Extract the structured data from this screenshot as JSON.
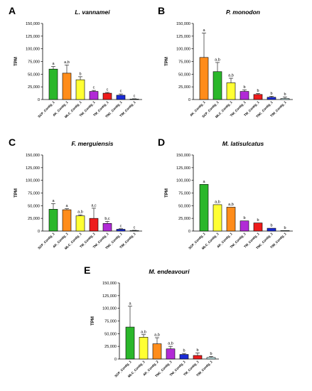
{
  "colors": {
    "green": "#2ab72a",
    "orange": "#ff8c1a",
    "yellow": "#ffff33",
    "purple": "#b12ad6",
    "red": "#ee1c1c",
    "blue": "#1a2bd6",
    "cyan": "#c8f4f4",
    "axis": "#000000"
  },
  "chart_data": [
    {
      "type": "bar",
      "panel": "A",
      "title": "L. vannamei",
      "ylabel": "TPM",
      "ylim": [
        0,
        150000
      ],
      "yticks": [
        0,
        25000,
        50000,
        75000,
        100000,
        125000,
        150000
      ],
      "ytick_labels": [
        "0",
        "25,000",
        "50,000",
        "75,000",
        "100,000",
        "125,000",
        "150,000"
      ],
      "categories": [
        "SCP_Contig_1",
        "AK_Contig_1",
        "MLC_Contig_1",
        "TNI_Contig_1",
        "TM_Contig_1",
        "TNC_Contig_1",
        "TIM_Contig_1"
      ],
      "values": [
        60000,
        52000,
        39000,
        16000,
        12500,
        8500,
        1000
      ],
      "errors": [
        5000,
        16000,
        6000,
        2000,
        1500,
        2500,
        500
      ],
      "letters": [
        "a",
        "a,b",
        "b",
        "c",
        "c",
        "c",
        "c"
      ],
      "colors": [
        "green",
        "orange",
        "yellow",
        "purple",
        "red",
        "blue",
        "cyan"
      ]
    },
    {
      "type": "bar",
      "panel": "B",
      "title": "P. monodon",
      "ylabel": "TPM",
      "ylim": [
        0,
        150000
      ],
      "yticks": [
        0,
        25000,
        50000,
        75000,
        100000,
        125000,
        150000
      ],
      "ytick_labels": [
        "0",
        "25,000",
        "50,000",
        "75,000",
        "100,000",
        "125,000",
        "150,000"
      ],
      "categories": [
        "AK_Contig_1",
        "SCP_Contig_1",
        "MLC_Contig_1",
        "TNI_Contig_1",
        "TM_Contig_1",
        "TNC_Contig_1",
        "TIM_Contig_1"
      ],
      "values": [
        83000,
        55000,
        33000,
        16000,
        10000,
        4500,
        2000
      ],
      "errors": [
        48000,
        18000,
        9000,
        3000,
        2000,
        2000,
        3000
      ],
      "letters": [
        "a",
        "a,b",
        "a,b",
        "b",
        "b",
        "b",
        "b"
      ],
      "colors": [
        "orange",
        "green",
        "yellow",
        "purple",
        "red",
        "blue",
        "cyan"
      ]
    },
    {
      "type": "bar",
      "panel": "C",
      "title": "F. merguiensis",
      "ylabel": "TPM",
      "ylim": [
        0,
        150000
      ],
      "yticks": [
        0,
        25000,
        50000,
        75000,
        100000,
        125000,
        150000
      ],
      "ytick_labels": [
        "0",
        "25,000",
        "50,000",
        "75,000",
        "100,000",
        "125,000",
        "150,000"
      ],
      "categories": [
        "SCP_Contig_1",
        "AK_Contig_1",
        "MLC_Contig_1",
        "TM_Contig_1",
        "TNI_Contig_1",
        "TNC_Contig_1",
        "TIM_Contig_1"
      ],
      "values": [
        43000,
        42000,
        30000,
        25000,
        15000,
        3500,
        1000
      ],
      "errors": [
        11000,
        2000,
        2000,
        20000,
        4000,
        1000,
        500
      ],
      "letters": [
        "a",
        "a",
        "a,b",
        "a,c",
        "b,c",
        "c",
        "c"
      ],
      "colors": [
        "green",
        "orange",
        "yellow",
        "red",
        "purple",
        "blue",
        "cyan"
      ]
    },
    {
      "type": "bar",
      "panel": "D",
      "title": "M. latisulcatus",
      "ylabel": "TPM",
      "ylim": [
        0,
        150000
      ],
      "yticks": [
        0,
        25000,
        50000,
        75000,
        100000,
        125000,
        150000
      ],
      "ytick_labels": [
        "0",
        "25,000",
        "50,000",
        "75,000",
        "100,000",
        "125,000",
        "150,000"
      ],
      "categories": [
        "SCP_Contig_1",
        "MLC_Contig_1",
        "AK_Contig_1",
        "TNI_Contig_1",
        "TM_Contig_1",
        "TNC_Contig_1",
        "TIM_Contig_1"
      ],
      "values": [
        92000,
        52000,
        47000,
        20000,
        16000,
        5500,
        1000
      ],
      "errors": [
        0,
        0,
        0,
        0,
        0,
        0,
        0
      ],
      "letters": [
        "a",
        "a,b",
        "a,b",
        "b",
        "b",
        "b",
        "b"
      ],
      "colors": [
        "green",
        "yellow",
        "orange",
        "purple",
        "red",
        "blue",
        "cyan"
      ]
    },
    {
      "type": "bar",
      "panel": "E",
      "title": "M. endeavouri",
      "ylabel": "TPM",
      "ylim": [
        0,
        150000
      ],
      "yticks": [
        0,
        25000,
        50000,
        75000,
        100000,
        125000,
        150000
      ],
      "ytick_labels": [
        "0",
        "25,000",
        "50,000",
        "75,000",
        "100,000",
        "125,000",
        "150,000"
      ],
      "categories": [
        "SCP_Contig_1",
        "MLC_Contig_1",
        "AK_Contig_2",
        "TNC_Contig_1",
        "TNI_Contig_1",
        "TM_Contig_1",
        "TIM_Contig_1"
      ],
      "values": [
        63000,
        43000,
        30000,
        20000,
        9000,
        7000,
        3000
      ],
      "errors": [
        41000,
        5000,
        12000,
        5000,
        2000,
        5000,
        2000
      ],
      "letters": [
        "a",
        "a,b",
        "a,b",
        "a,b",
        "b",
        "b",
        "b"
      ],
      "colors": [
        "green",
        "yellow",
        "orange",
        "purple",
        "blue",
        "red",
        "cyan"
      ]
    }
  ]
}
